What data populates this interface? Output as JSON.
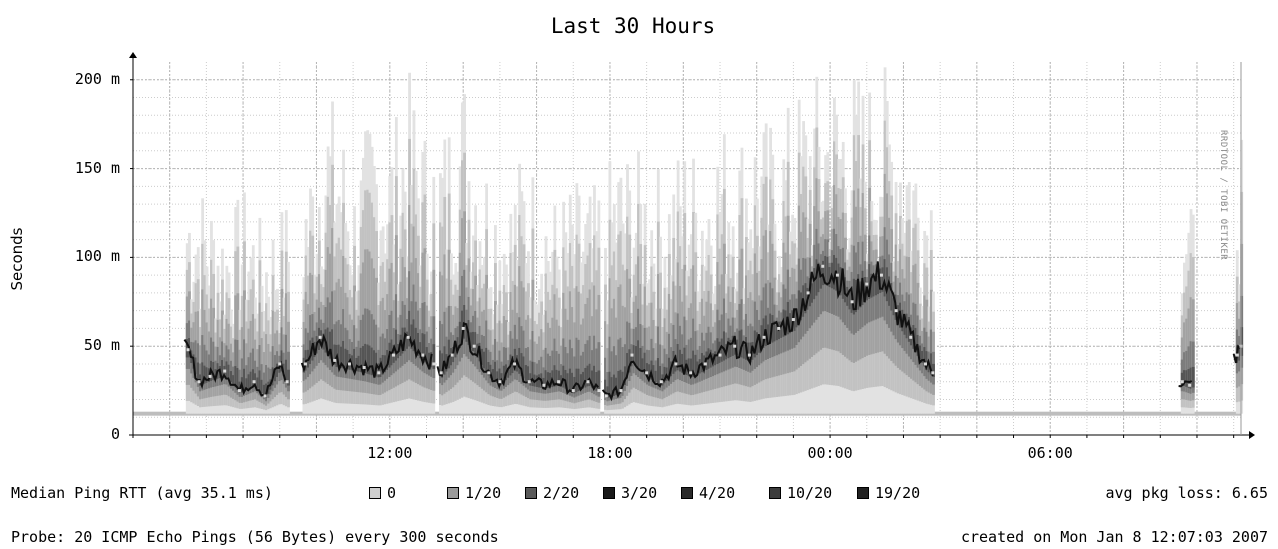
{
  "chart_data": {
    "type": "area",
    "title": "Last 30 Hours",
    "ylabel": "Seconds",
    "xlabel": "",
    "ylim": [
      0,
      0.21
    ],
    "yticks": [
      {
        "value": 0,
        "label": "0"
      },
      {
        "value": 0.05,
        "label": "50 m"
      },
      {
        "value": 0.1,
        "label": "100 m"
      },
      {
        "value": 0.15,
        "label": "150 m"
      },
      {
        "value": 0.2,
        "label": "200 m"
      }
    ],
    "xlim_hours": [
      5.0,
      35.2
    ],
    "xticks": [
      {
        "value": 12,
        "label": "12:00"
      },
      {
        "value": 18,
        "label": "18:00"
      },
      {
        "value": 24,
        "label": "00:00"
      },
      {
        "value": 30,
        "label": "06:00"
      }
    ],
    "grid": true,
    "baseline_seconds": 0.012,
    "segments_hours": [
      [
        6.4,
        9.2
      ],
      [
        9.6,
        13.2
      ],
      [
        13.3,
        17.7
      ],
      [
        17.8,
        26.8
      ],
      [
        33.5,
        33.9
      ],
      [
        35.0,
        37.0
      ]
    ],
    "median_ms": [
      [
        6.5,
        48
      ],
      [
        6.8,
        30
      ],
      [
        7.1,
        33
      ],
      [
        7.5,
        36
      ],
      [
        7.9,
        25
      ],
      [
        8.3,
        30
      ],
      [
        8.6,
        22
      ],
      [
        9.0,
        40
      ],
      [
        9.2,
        30
      ],
      [
        9.7,
        40
      ],
      [
        10.1,
        55
      ],
      [
        10.5,
        42
      ],
      [
        10.9,
        40
      ],
      [
        11.3,
        38
      ],
      [
        11.7,
        35
      ],
      [
        12.1,
        45
      ],
      [
        12.5,
        55
      ],
      [
        12.9,
        45
      ],
      [
        13.2,
        40
      ],
      [
        13.4,
        35
      ],
      [
        13.7,
        45
      ],
      [
        14.0,
        60
      ],
      [
        14.3,
        50
      ],
      [
        14.7,
        35
      ],
      [
        15.0,
        30
      ],
      [
        15.4,
        40
      ],
      [
        15.8,
        30
      ],
      [
        16.2,
        28
      ],
      [
        16.6,
        30
      ],
      [
        17.0,
        25
      ],
      [
        17.4,
        30
      ],
      [
        17.7,
        25
      ],
      [
        17.9,
        22
      ],
      [
        18.3,
        25
      ],
      [
        18.6,
        45
      ],
      [
        19.0,
        35
      ],
      [
        19.4,
        30
      ],
      [
        19.8,
        40
      ],
      [
        20.2,
        35
      ],
      [
        20.6,
        40
      ],
      [
        21.0,
        45
      ],
      [
        21.4,
        50
      ],
      [
        21.8,
        45
      ],
      [
        22.2,
        55
      ],
      [
        22.6,
        60
      ],
      [
        23.0,
        65
      ],
      [
        23.4,
        80
      ],
      [
        23.8,
        95
      ],
      [
        24.2,
        90
      ],
      [
        24.6,
        75
      ],
      [
        25.0,
        85
      ],
      [
        25.4,
        90
      ],
      [
        25.8,
        70
      ],
      [
        26.2,
        55
      ],
      [
        26.6,
        40
      ],
      [
        26.8,
        35
      ],
      [
        33.6,
        30
      ],
      [
        33.8,
        28
      ],
      [
        35.1,
        45
      ],
      [
        35.2,
        50
      ]
    ],
    "peaks_ms": [
      [
        6.5,
        150
      ],
      [
        7.0,
        140
      ],
      [
        7.5,
        125
      ],
      [
        8.0,
        140
      ],
      [
        8.5,
        120
      ],
      [
        9.0,
        130
      ],
      [
        9.8,
        160
      ],
      [
        10.2,
        200
      ],
      [
        10.6,
        185
      ],
      [
        11.0,
        150
      ],
      [
        11.5,
        190
      ],
      [
        12.0,
        175
      ],
      [
        12.5,
        205
      ],
      [
        13.0,
        170
      ],
      [
        13.5,
        180
      ],
      [
        14.0,
        210
      ],
      [
        14.4,
        170
      ],
      [
        14.8,
        150
      ],
      [
        15.2,
        140
      ],
      [
        15.6,
        165
      ],
      [
        16.0,
        150
      ],
      [
        16.5,
        135
      ],
      [
        17.0,
        145
      ],
      [
        17.5,
        140
      ],
      [
        18.2,
        165
      ],
      [
        18.8,
        160
      ],
      [
        19.5,
        150
      ],
      [
        20.0,
        170
      ],
      [
        20.5,
        160
      ],
      [
        21.0,
        180
      ],
      [
        21.5,
        175
      ],
      [
        22.0,
        185
      ],
      [
        22.5,
        175
      ],
      [
        23.0,
        195
      ],
      [
        23.5,
        205
      ],
      [
        24.0,
        210
      ],
      [
        24.5,
        210
      ],
      [
        25.0,
        205
      ],
      [
        25.5,
        210
      ],
      [
        26.0,
        195
      ],
      [
        26.5,
        160
      ],
      [
        33.6,
        160
      ],
      [
        33.8,
        130
      ],
      [
        35.0,
        195
      ],
      [
        35.1,
        190
      ],
      [
        35.2,
        180
      ]
    ],
    "legend": [
      {
        "label": "0",
        "color": "#cfcfcf"
      },
      {
        "label": "1/20",
        "color": "#9a9a9a"
      },
      {
        "label": "2/20",
        "color": "#5a5a5a"
      },
      {
        "label": "3/20",
        "color": "#1a1a1a"
      },
      {
        "label": "4/20",
        "color": "#2a2a2a"
      },
      {
        "label": "10/20",
        "color": "#3c3c3c"
      },
      {
        "label": "19/20",
        "color": "#222222"
      }
    ],
    "median_label": "Median Ping RTT (avg 35.1 ms)",
    "loss_label": "avg pkg loss: 6.65"
  },
  "footer": {
    "probe": "Probe: 20 ICMP Echo Pings (56 Bytes) every 300 seconds",
    "created": "created on Mon Jan  8 12:07:03 2007"
  },
  "watermark": "RRDTOOL / TOBI OETIKER"
}
